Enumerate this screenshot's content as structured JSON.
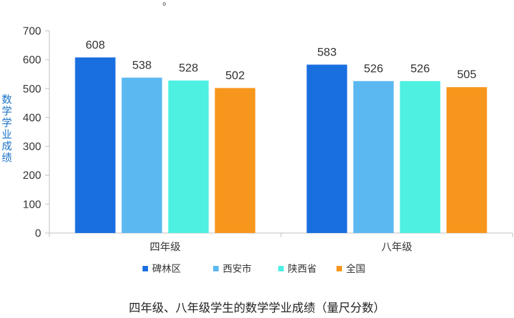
{
  "top_fragment": "。",
  "caption": "四年级、八年级学生的数学学业成绩（量尺分数）",
  "chart_data": {
    "type": "bar",
    "title": "",
    "xlabel": "",
    "ylabel": "数学学业成绩",
    "ylim": [
      0,
      700
    ],
    "yticks": [
      0,
      100,
      200,
      300,
      400,
      500,
      600,
      700
    ],
    "grid": false,
    "legend_position": "bottom",
    "categories": [
      "四年级",
      "八年级"
    ],
    "series": [
      {
        "name": "碑林区",
        "color": "#1a6fe0",
        "values": [
          608,
          583
        ]
      },
      {
        "name": "西安市",
        "color": "#5cb8f0",
        "values": [
          538,
          526
        ]
      },
      {
        "name": "陕西省",
        "color": "#4ef0e2",
        "values": [
          528,
          526
        ]
      },
      {
        "name": "全国",
        "color": "#f7961c",
        "values": [
          502,
          505
        ]
      }
    ]
  }
}
